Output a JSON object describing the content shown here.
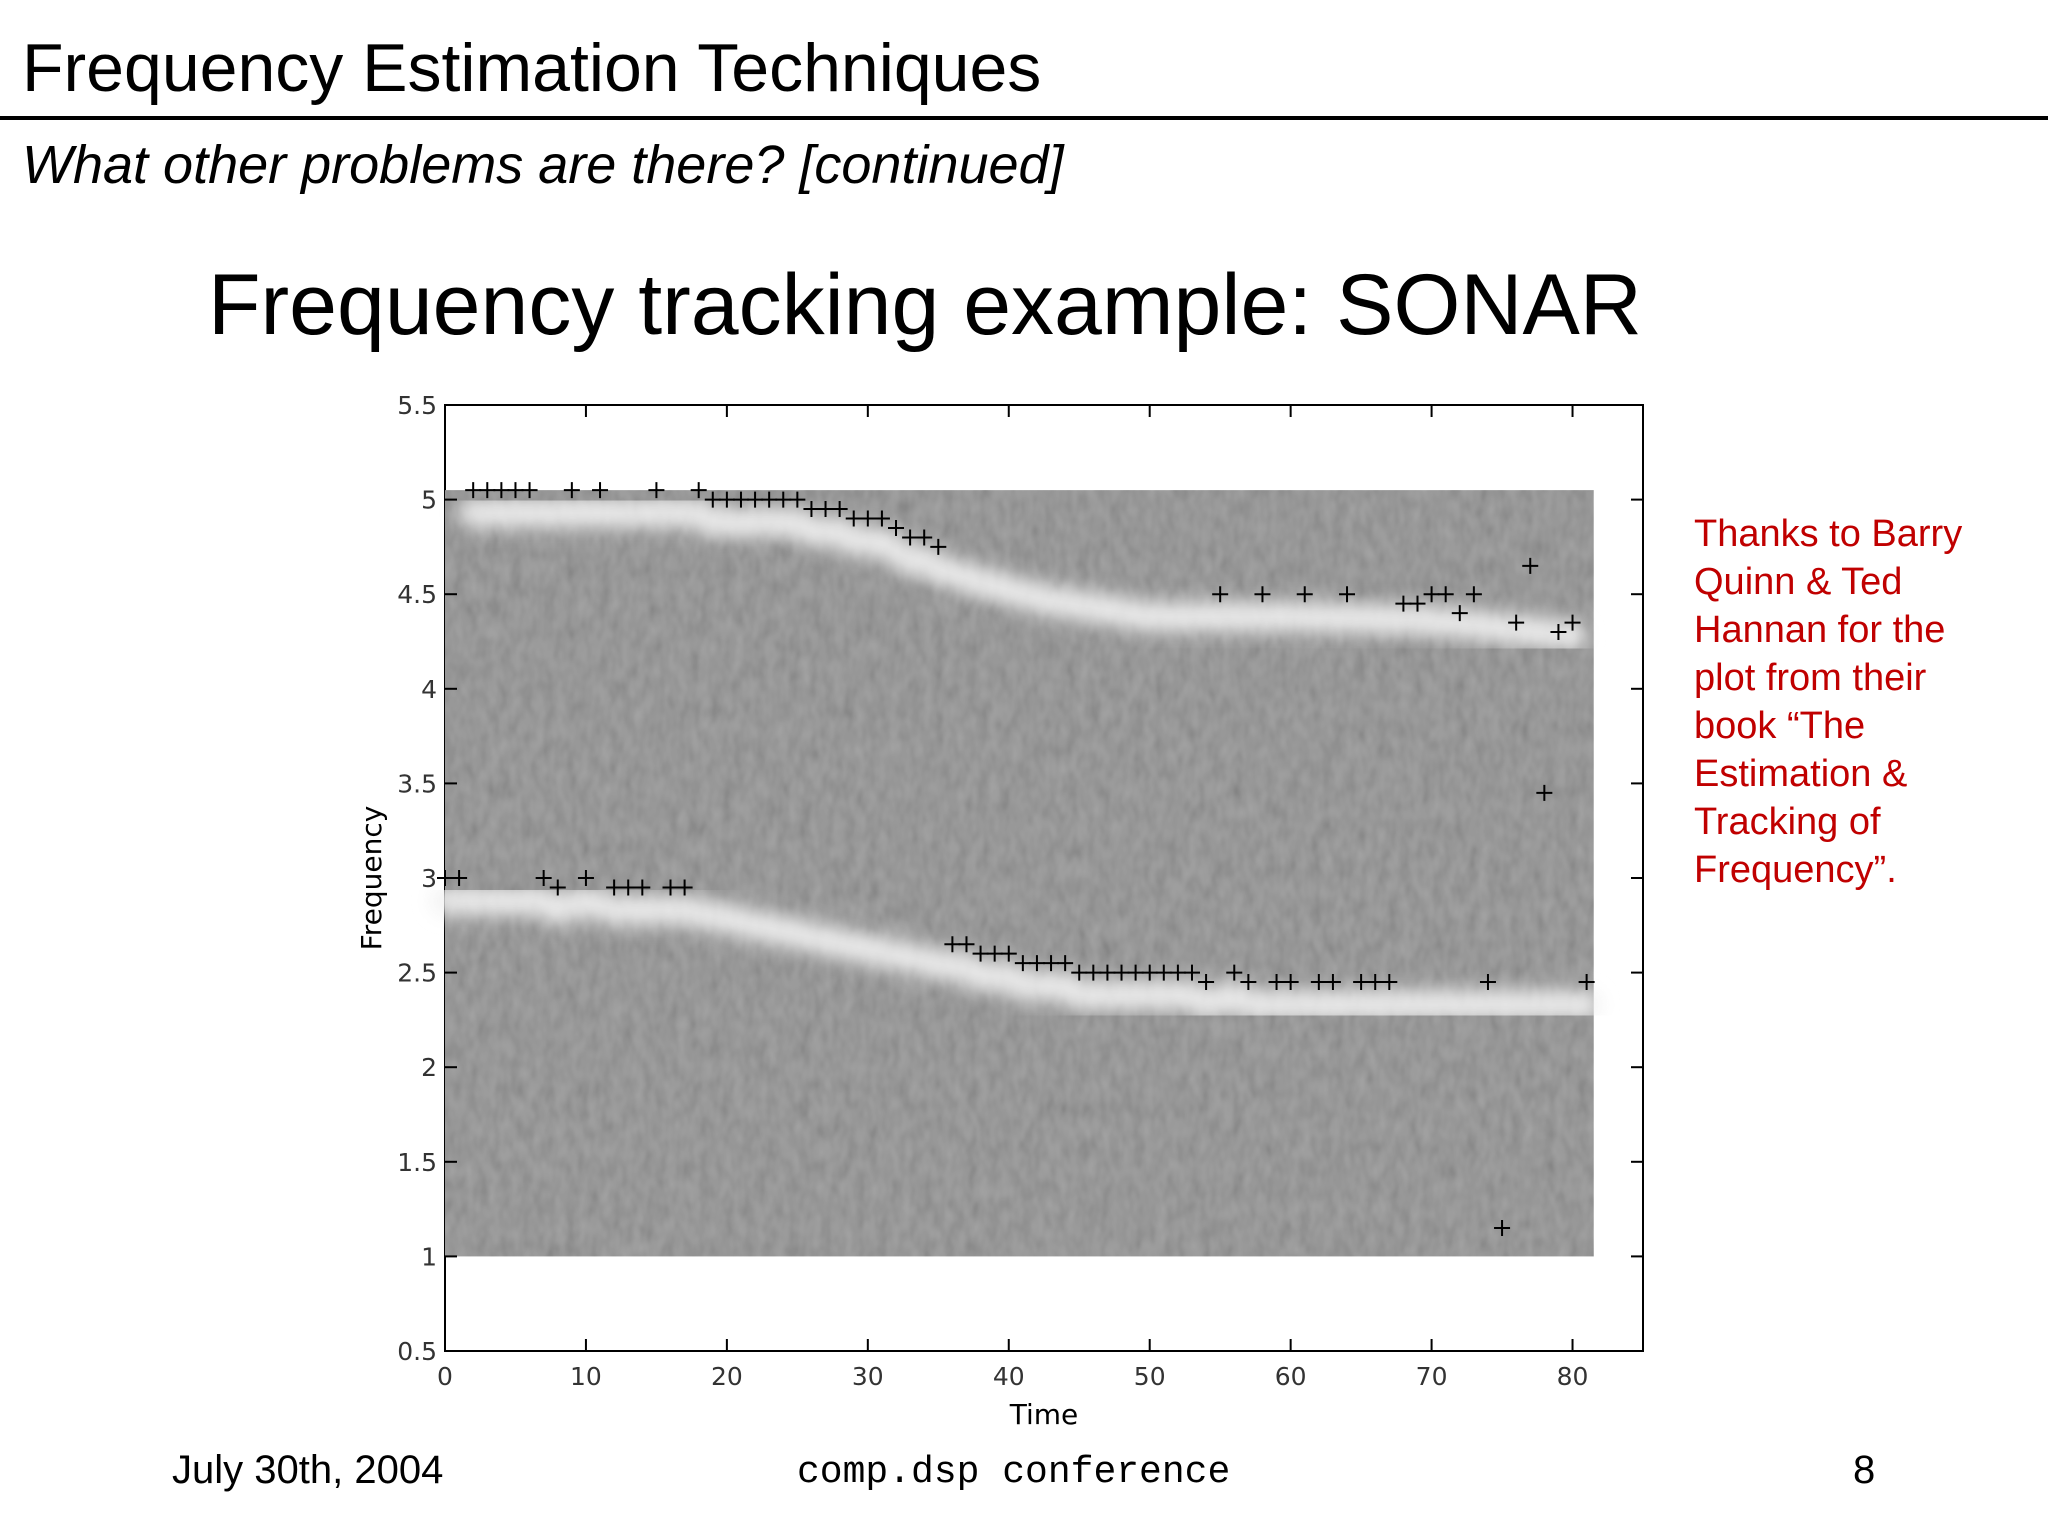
{
  "slide": {
    "title": "Frequency Estimation Techniques",
    "subtitle": "What other problems are there? [continued]",
    "heading": "Frequency tracking example: SONAR",
    "credit_lines": [
      "Thanks to Barry",
      "Quinn & Ted",
      "Hannan for the",
      "plot from their",
      "book “The",
      "Estimation &",
      "Tracking of",
      "Frequency”."
    ],
    "credit_color": "#c00000"
  },
  "footer": {
    "date": "July 30th, 2004",
    "conference": "comp.dsp conference",
    "page": "8"
  },
  "chart_data": {
    "type": "scatter",
    "background": "heatmap (grayscale spectrogram)",
    "xlabel": "Time",
    "ylabel": "Frequency",
    "xlim": [
      0,
      85
    ],
    "ylim": [
      0.5,
      5.5
    ],
    "xticks": [
      0,
      10,
      20,
      30,
      40,
      50,
      60,
      70,
      80
    ],
    "yticks": [
      0.5,
      1,
      1.5,
      2,
      2.5,
      3,
      3.5,
      4,
      4.5,
      5,
      5.5
    ],
    "heatmap_extent": {
      "x": [
        0,
        81.5
      ],
      "y": [
        1,
        5.05
      ]
    },
    "marker": "+",
    "series": [
      {
        "points": [
          [
            2,
            5.05
          ],
          [
            3,
            5.05
          ],
          [
            4,
            5.05
          ],
          [
            5,
            5.05
          ],
          [
            6,
            5.05
          ],
          [
            9,
            5.05
          ],
          [
            11,
            5.05
          ],
          [
            15,
            5.05
          ],
          [
            18,
            5.05
          ],
          [
            19,
            5.0
          ],
          [
            20,
            5.0
          ],
          [
            21,
            5.0
          ],
          [
            22,
            5.0
          ],
          [
            23,
            5.0
          ],
          [
            24,
            5.0
          ],
          [
            25,
            5.0
          ],
          [
            26,
            4.95
          ],
          [
            27,
            4.95
          ],
          [
            28,
            4.95
          ],
          [
            29,
            4.9
          ],
          [
            30,
            4.9
          ],
          [
            31,
            4.9
          ],
          [
            32,
            4.85
          ],
          [
            33,
            4.8
          ],
          [
            34,
            4.8
          ],
          [
            35,
            4.75
          ],
          [
            55,
            4.5
          ],
          [
            58,
            4.5
          ],
          [
            61,
            4.5
          ],
          [
            64,
            4.5
          ],
          [
            68,
            4.45
          ],
          [
            69,
            4.45
          ],
          [
            70,
            4.5
          ],
          [
            71,
            4.5
          ],
          [
            72,
            4.4
          ],
          [
            73,
            4.5
          ],
          [
            76,
            4.35
          ],
          [
            77,
            4.65
          ],
          [
            79,
            4.3
          ],
          [
            80,
            4.35
          ],
          [
            78,
            3.45
          ],
          [
            0,
            3.0
          ],
          [
            1,
            3.0
          ],
          [
            7,
            3.0
          ],
          [
            8,
            2.95
          ],
          [
            10,
            3.0
          ],
          [
            12,
            2.95
          ],
          [
            13,
            2.95
          ],
          [
            14,
            2.95
          ],
          [
            16,
            2.95
          ],
          [
            17,
            2.95
          ],
          [
            36,
            2.65
          ],
          [
            37,
            2.65
          ],
          [
            38,
            2.6
          ],
          [
            39,
            2.6
          ],
          [
            40,
            2.6
          ],
          [
            41,
            2.55
          ],
          [
            42,
            2.55
          ],
          [
            43,
            2.55
          ],
          [
            44,
            2.55
          ],
          [
            45,
            2.5
          ],
          [
            46,
            2.5
          ],
          [
            47,
            2.5
          ],
          [
            48,
            2.5
          ],
          [
            49,
            2.5
          ],
          [
            50,
            2.5
          ],
          [
            51,
            2.5
          ],
          [
            52,
            2.5
          ],
          [
            53,
            2.5
          ],
          [
            54,
            2.45
          ],
          [
            56,
            2.5
          ],
          [
            57,
            2.45
          ],
          [
            59,
            2.45
          ],
          [
            60,
            2.45
          ],
          [
            62,
            2.45
          ],
          [
            63,
            2.45
          ],
          [
            65,
            2.45
          ],
          [
            66,
            2.45
          ],
          [
            67,
            2.45
          ],
          [
            74,
            2.45
          ],
          [
            81,
            2.45
          ],
          [
            75,
            1.15
          ]
        ]
      }
    ]
  }
}
